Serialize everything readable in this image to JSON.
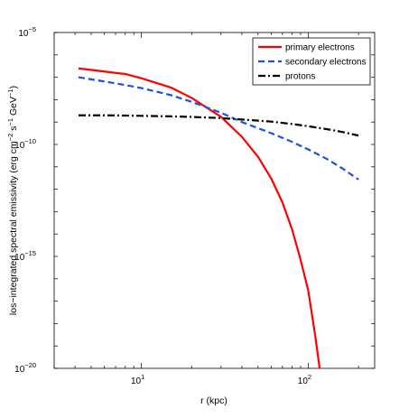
{
  "chart_data": {
    "type": "line",
    "xlabel": "r (kpc)",
    "ylabel_parts": {
      "base": "los−integrated spectral emissivity (erg cm",
      "sup1": "−2",
      "mid1": " s",
      "sup2": "−1",
      "mid2": " GeV",
      "sup3": "−1",
      "end": ")"
    },
    "xscale": "log",
    "yscale": "log",
    "xlim": [
      3,
      250
    ],
    "ylim": [
      1e-20,
      1e-05
    ],
    "x_ticks": [
      {
        "value": 10,
        "base": "10",
        "exp": "1"
      },
      {
        "value": 100,
        "base": "10",
        "exp": "2"
      }
    ],
    "y_ticks": [
      {
        "value": 1e-05,
        "base": "10",
        "exp": "−5"
      },
      {
        "value": 1e-10,
        "base": "10",
        "exp": "−10"
      },
      {
        "value": 1e-15,
        "base": "10",
        "exp": "−15"
      },
      {
        "value": 1e-20,
        "base": "10",
        "exp": "−20"
      }
    ],
    "legend_position": "top-right",
    "grid": false,
    "series": [
      {
        "name": "primary electrons",
        "color": "#ff0000",
        "style": "solid",
        "x": [
          4.2,
          6,
          8,
          10,
          15,
          20,
          30,
          40,
          50,
          60,
          70,
          80,
          90,
          100,
          110,
          117
        ],
        "y": [
          2.5e-07,
          1.8e-07,
          1.4e-07,
          9e-08,
          3.5e-08,
          1.2e-08,
          1.7e-09,
          2.2e-10,
          2.8e-11,
          3e-12,
          2.6e-13,
          1.6e-14,
          7e-16,
          3e-17,
          3e-19,
          1e-20
        ]
      },
      {
        "name": "secondary electrons",
        "color": "#1f4fe0",
        "style": "dashed",
        "x": [
          4.2,
          6,
          8,
          10,
          15,
          20,
          30,
          40,
          60,
          80,
          100,
          130,
          160,
          200
        ],
        "y": [
          1e-07,
          6.5e-08,
          4.5e-08,
          3.3e-08,
          1.6e-08,
          8e-09,
          2.6e-09,
          1e-09,
          3.2e-10,
          1.3e-10,
          6e-11,
          2.2e-11,
          8.5e-12,
          2.7e-12
        ]
      },
      {
        "name": "protons",
        "color": "#000000",
        "style": "dashdot",
        "x": [
          4.2,
          6,
          8,
          10,
          15,
          20,
          30,
          40,
          60,
          80,
          100,
          130,
          160,
          200
        ],
        "y": [
          2e-09,
          2e-09,
          1.95e-09,
          1.9e-09,
          1.8e-09,
          1.7e-09,
          1.5e-09,
          1.3e-09,
          1.05e-09,
          8.2e-10,
          6.5e-10,
          4.8e-10,
          3.6e-10,
          2.5e-10
        ]
      }
    ]
  }
}
